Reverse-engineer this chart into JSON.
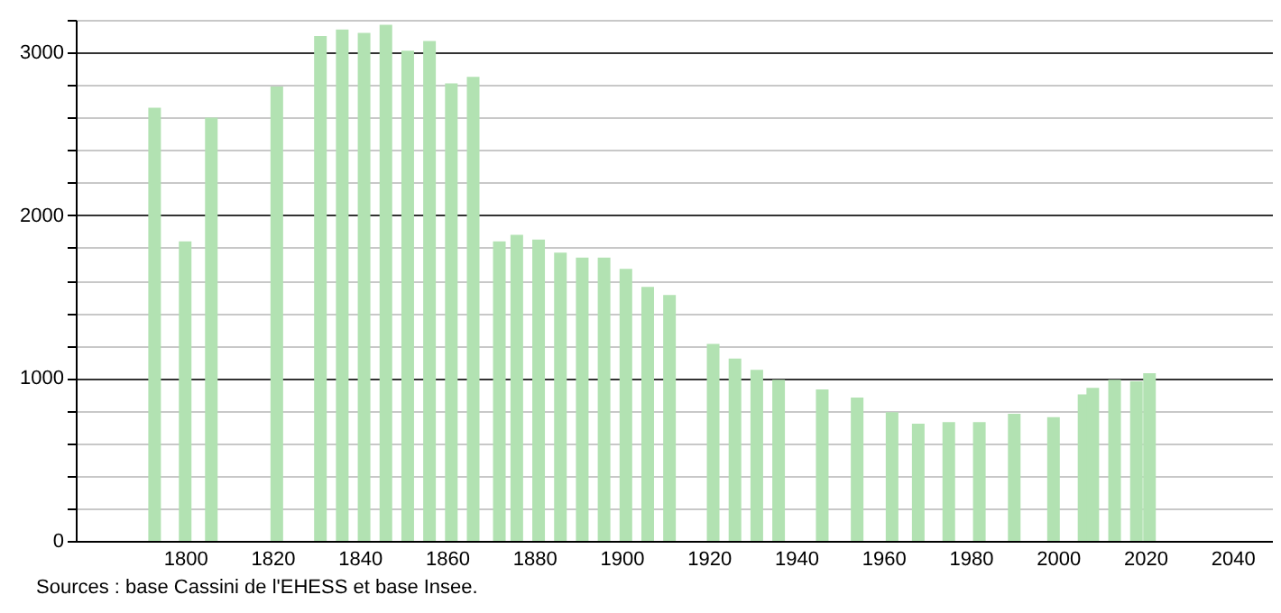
{
  "chart_data": {
    "type": "bar",
    "x": [
      1793,
      1800,
      1806,
      1821,
      1831,
      1836,
      1841,
      1846,
      1851,
      1856,
      1861,
      1866,
      1872,
      1876,
      1881,
      1886,
      1891,
      1896,
      1901,
      1906,
      1911,
      1921,
      1926,
      1931,
      1936,
      1946,
      1954,
      1962,
      1968,
      1975,
      1982,
      1990,
      1999,
      2006,
      2008,
      2013,
      2018,
      2021
    ],
    "values": [
      2660,
      1840,
      2600,
      2790,
      3100,
      3140,
      3120,
      3170,
      3010,
      3070,
      2810,
      2850,
      1840,
      1880,
      1850,
      1770,
      1740,
      1740,
      1670,
      1560,
      1510,
      1210,
      1120,
      1050,
      990,
      930,
      880,
      790,
      720,
      730,
      730,
      780,
      760,
      900,
      940,
      990,
      980,
      1030
    ],
    "color": "#b2e2b2",
    "xlim": [
      1777,
      2047
    ],
    "ylim": [
      0,
      3200
    ],
    "xticks": [
      1800,
      1820,
      1840,
      1860,
      1880,
      1900,
      1920,
      1940,
      1960,
      1980,
      2000,
      2020,
      2040
    ],
    "yticks": [
      0,
      {
        "value": 200,
        "label": null
      },
      {
        "value": 400,
        "label": null
      },
      {
        "value": 600,
        "label": null
      },
      {
        "value": 800,
        "label": null
      },
      1000,
      {
        "value": 1200,
        "label": null
      },
      {
        "value": 1400,
        "label": null
      },
      {
        "value": 1600,
        "label": null
      },
      {
        "value": 1800,
        "label": null
      },
      2000,
      {
        "value": 2200,
        "label": null
      },
      {
        "value": 2400,
        "label": null
      },
      {
        "value": 2600,
        "label": null
      },
      {
        "value": 2800,
        "label": null
      },
      3000,
      {
        "value": 3200,
        "label": null
      }
    ],
    "grid": "y",
    "annotations": [
      "Sources : base Cassini de l'EHESS et base Insee."
    ]
  }
}
